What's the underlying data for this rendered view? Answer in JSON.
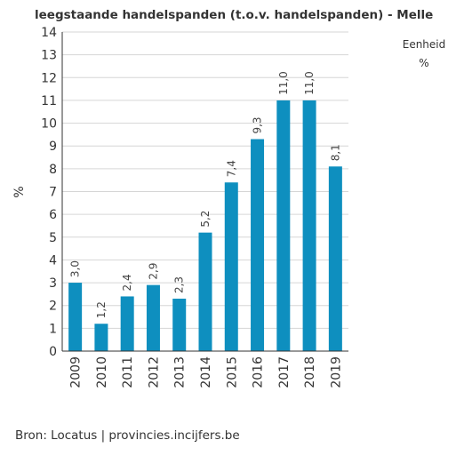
{
  "chart_data": {
    "type": "bar",
    "title": "leegstaande handelspanden (t.o.v. handelspanden) - Melle",
    "xlabel": "",
    "ylabel": "%",
    "categories": [
      "2009",
      "2010",
      "2011",
      "2012",
      "2013",
      "2014",
      "2015",
      "2016",
      "2017",
      "2018",
      "2019"
    ],
    "values": [
      3.0,
      1.2,
      2.4,
      2.9,
      2.3,
      5.2,
      7.4,
      9.3,
      11.0,
      11.0,
      8.1
    ],
    "data_labels": [
      "3,0",
      "1,2",
      "2,4",
      "2,9",
      "2,3",
      "5,2",
      "7,4",
      "9,3",
      "11,0",
      "11,0",
      "8,1"
    ],
    "ylim": [
      0,
      14
    ],
    "yticks": [
      "0",
      "1",
      "2",
      "3",
      "4",
      "5",
      "6",
      "7",
      "8",
      "9",
      "10",
      "11",
      "12",
      "13",
      "14"
    ],
    "grid": true,
    "bar_color": "#0e8fbf"
  },
  "unit_box": {
    "label": "Eenheid",
    "value": "%"
  },
  "source": "Bron: Locatus | provincies.incijfers.be"
}
